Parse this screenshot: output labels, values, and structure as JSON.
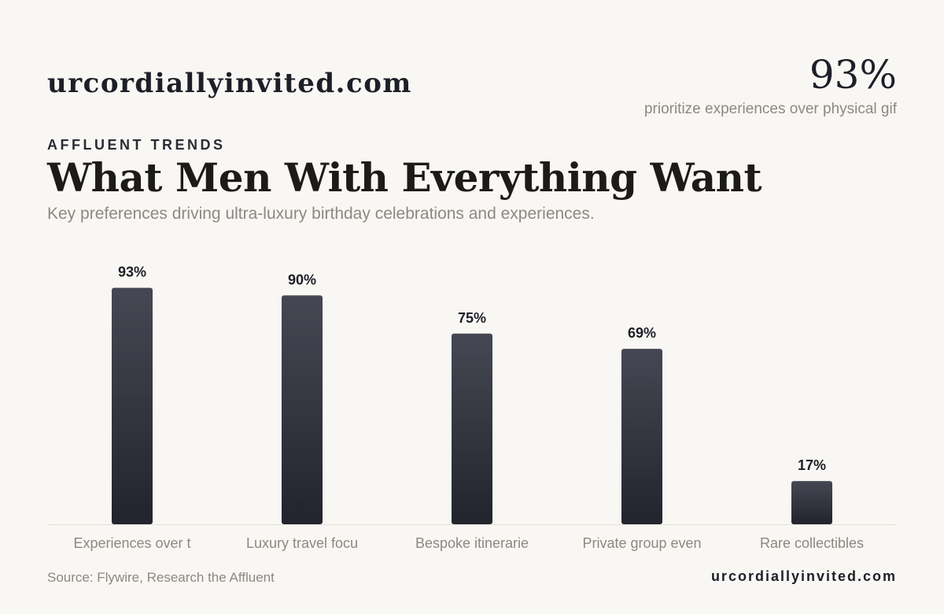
{
  "header": {
    "brand": "urcordiallyinvited.com",
    "stat_value": "93%",
    "stat_caption": "prioritize experiences over physical gif"
  },
  "eyebrow": "AFFLUENT TRENDS",
  "title": "What Men With Everything Want",
  "subtitle": "Key preferences driving ultra-luxury birthday celebrations and experiences.",
  "footer": {
    "source": "Source: Flywire, Research the Affluent",
    "brand": "urcordiallyinvited.com"
  },
  "chart_data": {
    "type": "bar",
    "categories": [
      "Experiences over t",
      "Luxury travel focu",
      "Bespoke itinerarie",
      "Private group even",
      "Rare collectibles"
    ],
    "values": [
      93,
      90,
      75,
      69,
      17
    ],
    "value_labels": [
      "93%",
      "90%",
      "75%",
      "69%",
      "17%"
    ],
    "ylim": [
      0,
      100
    ],
    "grid": false,
    "legend": "none",
    "colors": {
      "bar_top": "#454752",
      "bar_bottom": "#22242d",
      "axis": "#e2ded6",
      "value_label": "#1d1f28",
      "category_label": "#8c8882"
    }
  }
}
